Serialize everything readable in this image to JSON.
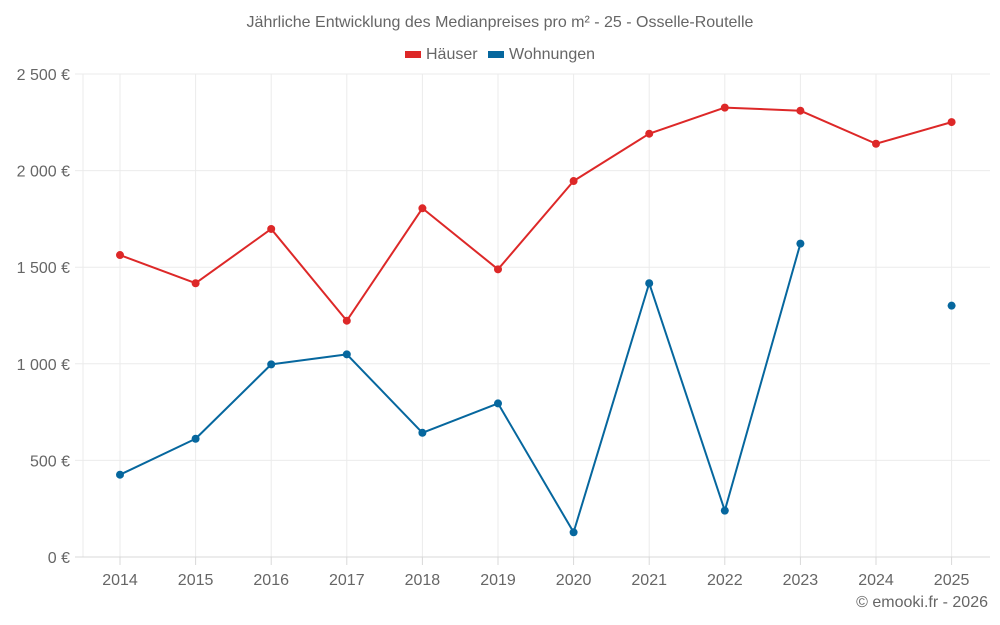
{
  "chart_data": {
    "type": "line",
    "title": "Jährliche Entwicklung des Medianpreises pro m² - 25 - Osselle-Routelle",
    "xlabel": "",
    "ylabel": "",
    "x": [
      "2014",
      "2015",
      "2016",
      "2017",
      "2018",
      "2019",
      "2020",
      "2021",
      "2022",
      "2023",
      "2024",
      "2025"
    ],
    "ylim": [
      0,
      2500
    ],
    "yticks": [
      0,
      500,
      1000,
      1500,
      2000,
      2500
    ],
    "ytick_labels": [
      "0 €",
      "500 €",
      "1 000 €",
      "1 500 €",
      "2 000 €",
      "2 500 €"
    ],
    "grid": true,
    "legend_position": "top-center",
    "series": [
      {
        "name": "Häuser",
        "color": "#dd2828",
        "values": [
          1563,
          1417,
          1698,
          1223,
          1805,
          1489,
          1946,
          2191,
          2326,
          2310,
          2139,
          2251
        ]
      },
      {
        "name": "Wohnungen",
        "color": "#06679e",
        "values": [
          426,
          612,
          997,
          1049,
          643,
          795,
          128,
          1417,
          240,
          1622,
          null,
          1301
        ]
      }
    ]
  },
  "credit": "© emooki.fr - 2026"
}
